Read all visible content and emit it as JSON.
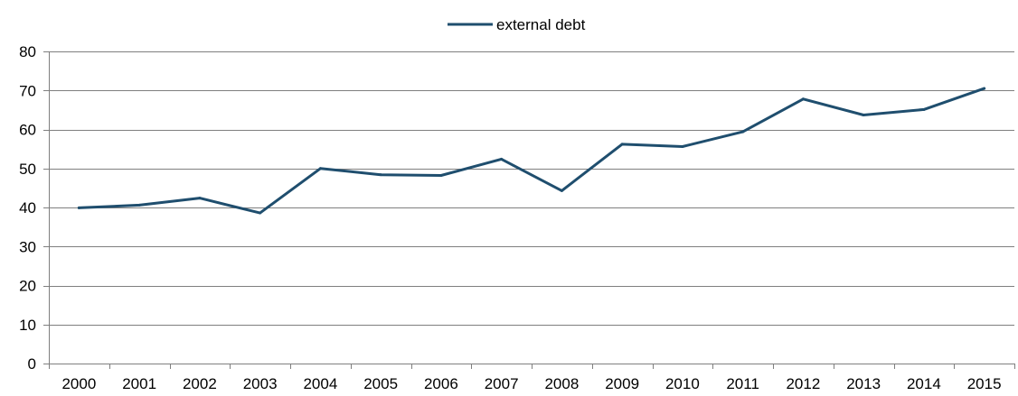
{
  "chart_data": {
    "type": "line",
    "categories": [
      "2000",
      "2001",
      "2002",
      "2003",
      "2004",
      "2005",
      "2006",
      "2007",
      "2008",
      "2009",
      "2010",
      "2011",
      "2012",
      "2013",
      "2014",
      "2015"
    ],
    "series": [
      {
        "name": "external debt",
        "color": "#1f4e6e",
        "values": [
          39.9,
          40.6,
          42.4,
          38.6,
          50.0,
          48.4,
          48.2,
          52.4,
          44.3,
          56.2,
          55.6,
          59.4,
          67.8,
          63.7,
          65.1,
          70.5
        ]
      }
    ],
    "title": "",
    "xlabel": "",
    "ylabel": "",
    "ylim": [
      0,
      80
    ],
    "yticks": [
      "0",
      "10",
      "20",
      "30",
      "40",
      "50",
      "60",
      "70",
      "80"
    ],
    "grid": true,
    "legend_position": "top-center"
  }
}
